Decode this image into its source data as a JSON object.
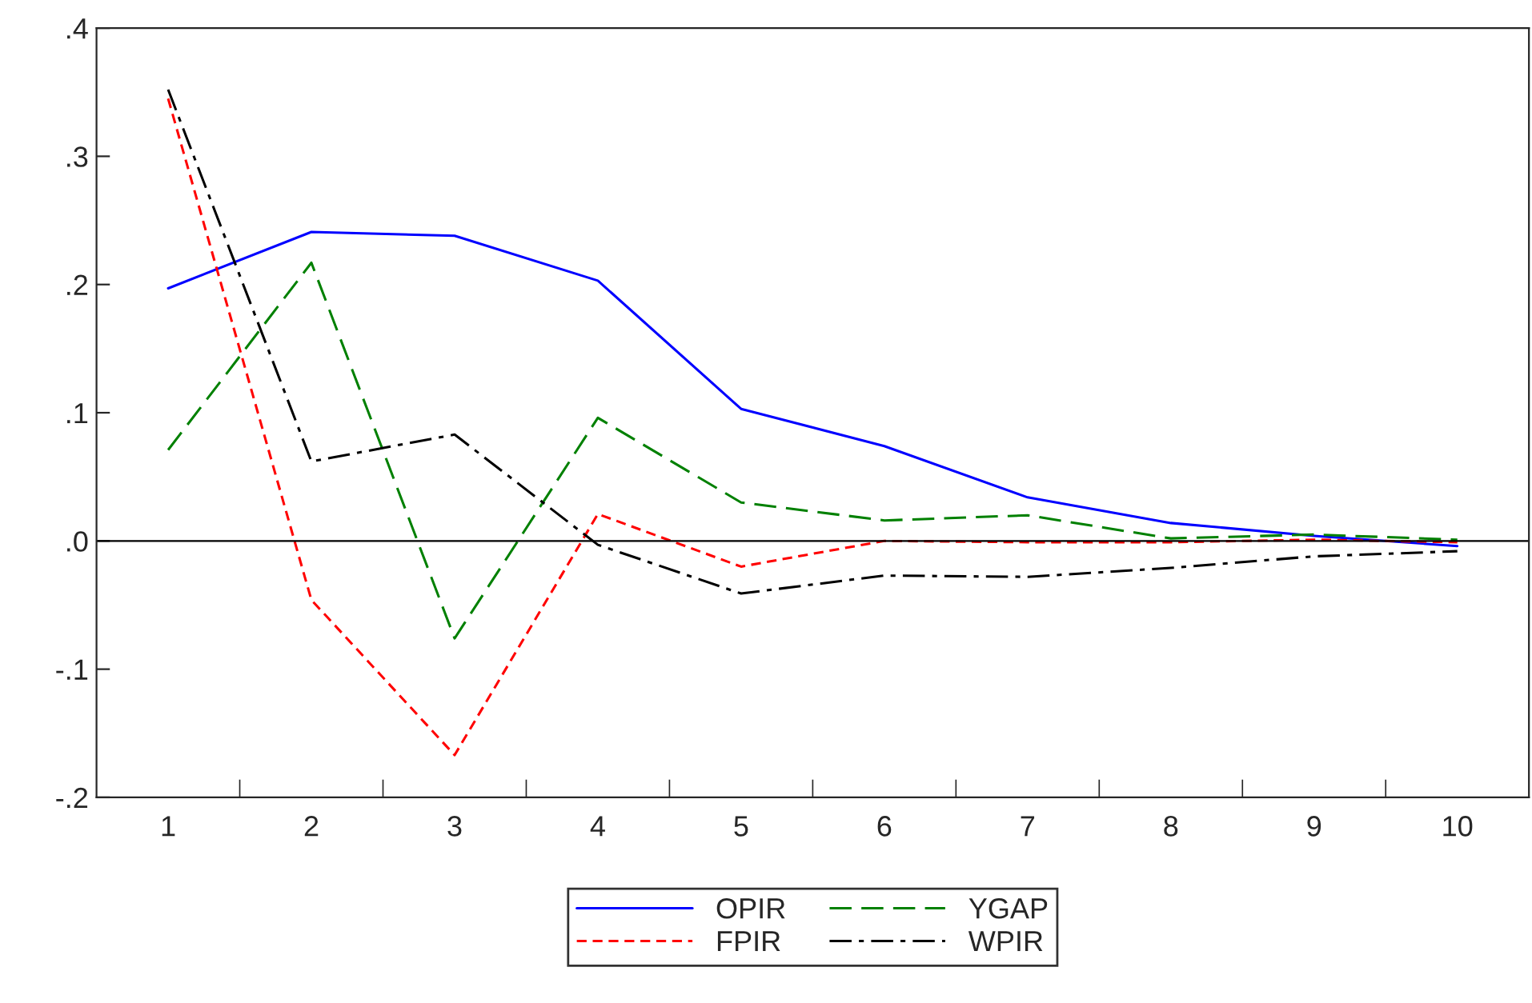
{
  "chart_data": {
    "type": "line",
    "categories": [
      "1",
      "2",
      "3",
      "4",
      "5",
      "6",
      "7",
      "8",
      "9",
      "10"
    ],
    "series": [
      {
        "name": "OPIR",
        "color": "#0000ff",
        "line_style": "solid",
        "values": [
          0.197,
          0.241,
          0.238,
          0.203,
          0.103,
          0.074,
          0.034,
          0.014,
          0.004,
          -0.004
        ]
      },
      {
        "name": "FPIR",
        "color": "#ff0000",
        "line_style": "dashed",
        "values": [
          0.345,
          -0.046,
          -0.167,
          0.021,
          -0.02,
          0.0,
          -0.001,
          -0.001,
          0.001,
          -0.001
        ]
      },
      {
        "name": "YGAP",
        "color": "#008000",
        "line_style": "longdash",
        "values": [
          0.071,
          0.217,
          -0.076,
          0.096,
          0.03,
          0.016,
          0.02,
          0.002,
          0.005,
          0.001
        ]
      },
      {
        "name": "WPIR",
        "color": "#000000",
        "line_style": "dashdot",
        "values": [
          0.352,
          0.062,
          0.083,
          -0.003,
          -0.041,
          -0.027,
          -0.028,
          -0.021,
          -0.012,
          -0.008
        ]
      }
    ],
    "ylim": [
      -0.2,
      0.4
    ],
    "yticks": [
      {
        "value": -0.2,
        "label": "-.2"
      },
      {
        "value": -0.1,
        "label": "-.1"
      },
      {
        "value": 0.0,
        "label": ".0"
      },
      {
        "value": 0.1,
        "label": ".1"
      },
      {
        "value": 0.2,
        "label": ".2"
      },
      {
        "value": 0.3,
        "label": ".3"
      },
      {
        "value": 0.4,
        "label": ".4"
      }
    ],
    "ref_lines": [
      {
        "axis": "y",
        "value": 0.0,
        "color": "#000000",
        "line_style": "solid"
      }
    ],
    "grid": false,
    "legend": "bottom"
  }
}
